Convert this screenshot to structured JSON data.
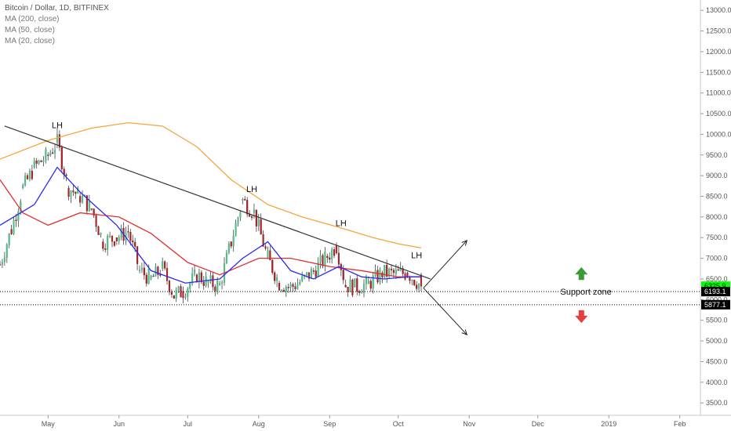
{
  "legend": {
    "symbol": "Bitcoin / Dollar, 1D, BITFINEX",
    "ma200": "MA (200, close)",
    "ma50": "MA (50, close)",
    "ma20": "MA (20, close)"
  },
  "chart_data": {
    "type": "candlestick",
    "title": "Bitcoin / Dollar, 1D, BITFINEX",
    "x_axis": {
      "ticks": [
        "May",
        "Jun",
        "Jul",
        "Aug",
        "Sep",
        "Oct",
        "Nov",
        "Dec",
        "2019",
        "Feb"
      ],
      "range": [
        "2018-04-10",
        "2019-02-10"
      ]
    },
    "y_axis": {
      "position": "right",
      "ticks": [
        3500,
        4000,
        4500,
        5000,
        5500,
        6000,
        6500,
        7000,
        7500,
        8000,
        8500,
        9000,
        9500,
        10000,
        10500,
        11000,
        11500,
        12000,
        12500,
        13000
      ],
      "tick_labels": [
        "3500.0",
        "4000.0",
        "4500.0",
        "5000.0",
        "5500.0",
        "6000.0",
        "6500.0",
        "7000.0",
        "7500.0",
        "8000.0",
        "8500.0",
        "9000.0",
        "9500.0",
        "10000.0",
        "10500.0",
        "11000.0",
        "11500.0",
        "12000.0",
        "12500.0",
        "13000.0"
      ],
      "range": [
        3200,
        13250
      ]
    },
    "price_labels": [
      {
        "text": "6325.9",
        "value": 6325.9,
        "color": "#00ff00"
      },
      {
        "text": "6193.1",
        "value": 6193.1,
        "color": "#000000"
      },
      {
        "text": "5877.1",
        "value": 5877.1,
        "color": "#000000"
      }
    ],
    "ohlc_approx": [
      {
        "date": "2018-04-10",
        "values": [
          6800,
          6900,
          6700,
          6850
        ]
      },
      {
        "date": "2018-04-15",
        "values": [
          7300,
          7800,
          7200,
          7700
        ]
      },
      {
        "date": "2018-04-20",
        "values": [
          8100,
          8800,
          8000,
          8700
        ]
      },
      {
        "date": "2018-04-25",
        "values": [
          8900,
          9600,
          8600,
          9200
        ]
      },
      {
        "date": "2018-05-01",
        "values": [
          9200,
          9600,
          9000,
          9500
        ]
      },
      {
        "date": "2018-05-05",
        "values": [
          9700,
          9990,
          9600,
          9800
        ]
      },
      {
        "date": "2018-05-10",
        "values": [
          9300,
          9400,
          8500,
          8700
        ]
      },
      {
        "date": "2018-05-15",
        "values": [
          8700,
          8800,
          8300,
          8500
        ]
      },
      {
        "date": "2018-05-20",
        "values": [
          8500,
          8600,
          8100,
          8200
        ]
      },
      {
        "date": "2018-05-25",
        "values": [
          7600,
          7700,
          7300,
          7400
        ]
      },
      {
        "date": "2018-05-31",
        "values": [
          7400,
          7600,
          7400,
          7500
        ]
      },
      {
        "date": "2018-06-05",
        "values": [
          7600,
          7700,
          7500,
          7650
        ]
      },
      {
        "date": "2018-06-10",
        "values": [
          6800,
          6900,
          6600,
          6700
        ]
      },
      {
        "date": "2018-06-15",
        "values": [
          6600,
          6700,
          6400,
          6500
        ]
      },
      {
        "date": "2018-06-20",
        "values": [
          6700,
          6800,
          6500,
          6750
        ]
      },
      {
        "date": "2018-06-25",
        "values": [
          6200,
          6300,
          5900,
          6100
        ]
      },
      {
        "date": "2018-06-29",
        "values": [
          5900,
          6000,
          5800,
          6200
        ]
      },
      {
        "date": "2018-07-05",
        "values": [
          6500,
          6700,
          6400,
          6600
        ]
      },
      {
        "date": "2018-07-10",
        "values": [
          6700,
          6800,
          6500,
          6400
        ]
      },
      {
        "date": "2018-07-15",
        "values": [
          6300,
          6400,
          6200,
          6350
        ]
      },
      {
        "date": "2018-07-20",
        "values": [
          7300,
          7500,
          7200,
          7400
        ]
      },
      {
        "date": "2018-07-25",
        "values": [
          8200,
          8500,
          8100,
          8400
        ]
      },
      {
        "date": "2018-07-30",
        "values": [
          8200,
          8300,
          8000,
          8100
        ]
      },
      {
        "date": "2018-08-05",
        "values": [
          7200,
          7300,
          6900,
          7000
        ]
      },
      {
        "date": "2018-08-10",
        "values": [
          6500,
          6600,
          6300,
          6400
        ]
      },
      {
        "date": "2018-08-15",
        "values": [
          6300,
          6400,
          5900,
          6300
        ]
      },
      {
        "date": "2018-08-20",
        "values": [
          6400,
          6500,
          6300,
          6450
        ]
      },
      {
        "date": "2018-08-25",
        "values": [
          6600,
          6700,
          6500,
          6700
        ]
      },
      {
        "date": "2018-08-31",
        "values": [
          7000,
          7100,
          6900,
          7050
        ]
      },
      {
        "date": "2018-09-04",
        "values": [
          7300,
          7400,
          7200,
          7300
        ]
      },
      {
        "date": "2018-09-08",
        "values": [
          6500,
          6600,
          6300,
          6350
        ]
      },
      {
        "date": "2018-09-12",
        "values": [
          6300,
          6400,
          6200,
          6300
        ]
      },
      {
        "date": "2018-09-18",
        "values": [
          6300,
          6400,
          6250,
          6380
        ]
      },
      {
        "date": "2018-09-24",
        "values": [
          6600,
          6750,
          6500,
          6650
        ]
      },
      {
        "date": "2018-09-30",
        "values": [
          6600,
          6650,
          6550,
          6620
        ]
      },
      {
        "date": "2018-10-05",
        "values": [
          6600,
          6700,
          6550,
          6650
        ]
      },
      {
        "date": "2018-10-11",
        "values": [
          6600,
          6650,
          6200,
          6325.9
        ]
      }
    ],
    "series": [
      {
        "name": "MA (200, close)",
        "color": "#f7a43a",
        "points": [
          [
            "2018-04-10",
            9400
          ],
          [
            "2018-05-01",
            9850
          ],
          [
            "2018-05-20",
            10150
          ],
          [
            "2018-06-05",
            10280
          ],
          [
            "2018-06-20",
            10200
          ],
          [
            "2018-07-05",
            9700
          ],
          [
            "2018-07-20",
            8900
          ],
          [
            "2018-08-05",
            8300
          ],
          [
            "2018-08-20",
            8000
          ],
          [
            "2018-09-05",
            7750
          ],
          [
            "2018-09-20",
            7500
          ],
          [
            "2018-10-01",
            7350
          ],
          [
            "2018-10-11",
            7250
          ]
        ]
      },
      {
        "name": "MA (50, close)",
        "color": "#e03030",
        "points": [
          [
            "2018-04-10",
            8900
          ],
          [
            "2018-04-20",
            8100
          ],
          [
            "2018-05-01",
            7800
          ],
          [
            "2018-05-15",
            8100
          ],
          [
            "2018-06-01",
            8000
          ],
          [
            "2018-06-15",
            7600
          ],
          [
            "2018-07-01",
            6900
          ],
          [
            "2018-07-15",
            6600
          ],
          [
            "2018-08-01",
            7000
          ],
          [
            "2018-08-15",
            7000
          ],
          [
            "2018-09-01",
            6800
          ],
          [
            "2018-09-15",
            6700
          ],
          [
            "2018-10-01",
            6550
          ],
          [
            "2018-10-11",
            6550
          ]
        ]
      },
      {
        "name": "MA (20, close)",
        "color": "#2a2aee",
        "points": [
          [
            "2018-04-10",
            7800
          ],
          [
            "2018-04-25",
            8300
          ],
          [
            "2018-05-05",
            9200
          ],
          [
            "2018-05-15",
            8600
          ],
          [
            "2018-05-31",
            7800
          ],
          [
            "2018-06-15",
            6700
          ],
          [
            "2018-06-30",
            6400
          ],
          [
            "2018-07-15",
            6500
          ],
          [
            "2018-07-25",
            7000
          ],
          [
            "2018-08-05",
            7400
          ],
          [
            "2018-08-15",
            6700
          ],
          [
            "2018-08-25",
            6500
          ],
          [
            "2018-09-05",
            6800
          ],
          [
            "2018-09-15",
            6550
          ],
          [
            "2018-09-25",
            6500
          ],
          [
            "2018-10-05",
            6550
          ],
          [
            "2018-10-11",
            6550
          ]
        ]
      }
    ],
    "trendline": {
      "from": [
        "2018-04-12",
        10200
      ],
      "to": [
        "2018-10-15",
        6500
      ],
      "color": "#333333"
    },
    "horizontal_lines": [
      {
        "value": 6193.1,
        "style": "dotted",
        "color": "#000000"
      },
      {
        "value": 5877.1,
        "style": "dotted",
        "color": "#000000"
      }
    ],
    "annotations": [
      {
        "text": "LH",
        "date": "2018-05-05",
        "value": 10150
      },
      {
        "text": "LH",
        "date": "2018-07-29",
        "value": 8600
      },
      {
        "text": "LH",
        "date": "2018-09-06",
        "value": 7780
      },
      {
        "text": "LH",
        "date": "2018-10-09",
        "value": 7000
      },
      {
        "text": "Support zone",
        "date": "2018-12-22",
        "value": 6120
      }
    ],
    "arrows": [
      {
        "direction": "up",
        "from": [
          "2018-10-12",
          6280
        ],
        "to": [
          "2018-10-31",
          7430
        ]
      },
      {
        "direction": "down",
        "from": [
          "2018-10-12",
          6280
        ],
        "to": [
          "2018-10-31",
          5150
        ]
      }
    ],
    "markers": [
      {
        "icon": "green-up-arrow",
        "date": "2018-12-20",
        "value": 6600,
        "color": "#3a9a3a"
      },
      {
        "icon": "red-down-arrow",
        "date": "2018-12-20",
        "value": 5620,
        "color": "#e04040"
      }
    ],
    "grid": false
  }
}
